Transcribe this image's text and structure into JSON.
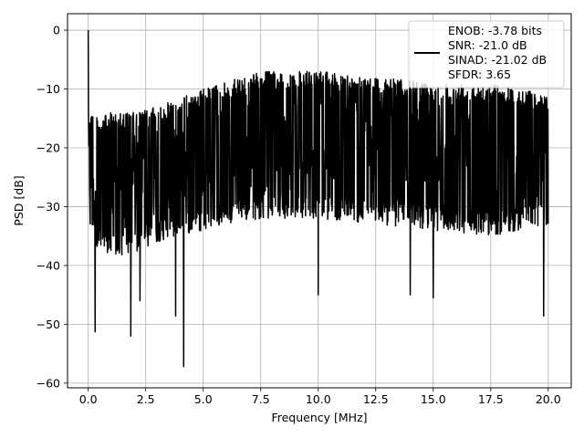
{
  "chart_data": {
    "type": "line",
    "title": "",
    "xlabel": "Frequency [MHz]",
    "ylabel": "PSD [dB]",
    "xlim": [
      -0.9,
      21.0
    ],
    "ylim": [
      -60.8,
      2.8
    ],
    "xticks": [
      0.0,
      2.5,
      5.0,
      7.5,
      10.0,
      12.5,
      15.0,
      17.5,
      20.0
    ],
    "xtick_labels": [
      "0.0",
      "2.5",
      "5.0",
      "7.5",
      "10.0",
      "12.5",
      "15.0",
      "17.5",
      "20.0"
    ],
    "yticks": [
      0,
      -10,
      -20,
      -30,
      -40,
      -50,
      -60
    ],
    "ytick_labels": [
      "0",
      "−10",
      "−20",
      "−30",
      "−40",
      "−50",
      "−60"
    ],
    "grid": true,
    "legend_position": "top-right",
    "legend_entries": [
      "ENOB: -3.78 bits",
      "SNR: -21.0 dB",
      "SINAD: -21.02 dB",
      "SFDR: 3.65"
    ],
    "series": [
      {
        "color": "#000000",
        "x_range": [
          0.0,
          20.0
        ],
        "peak": {
          "x": 0.0,
          "y": 0.0
        },
        "band_envelope": {
          "x": [
            0.0,
            0.5,
            1.0,
            2.0,
            3.0,
            5.0,
            7.5,
            10.0,
            12.5,
            15.0,
            17.5,
            20.0
          ],
          "upper": [
            -13,
            -15,
            -14,
            -14,
            -13,
            -10,
            -7,
            -7,
            -8,
            -9,
            -9,
            -11
          ],
          "lower": [
            -33,
            -38,
            -39,
            -38,
            -36,
            -34,
            -32,
            -32,
            -33,
            -34,
            -35,
            -33
          ]
        },
        "deep_dips": [
          {
            "x": 0.3,
            "y": -51.3
          },
          {
            "x": 1.85,
            "y": -52.0
          },
          {
            "x": 2.25,
            "y": -46.0
          },
          {
            "x": 3.8,
            "y": -48.6
          },
          {
            "x": 4.15,
            "y": -57.2
          },
          {
            "x": 10.0,
            "y": -45.0
          },
          {
            "x": 14.0,
            "y": -45.0
          },
          {
            "x": 15.0,
            "y": -45.5
          },
          {
            "x": 19.8,
            "y": -48.6
          }
        ]
      }
    ]
  }
}
